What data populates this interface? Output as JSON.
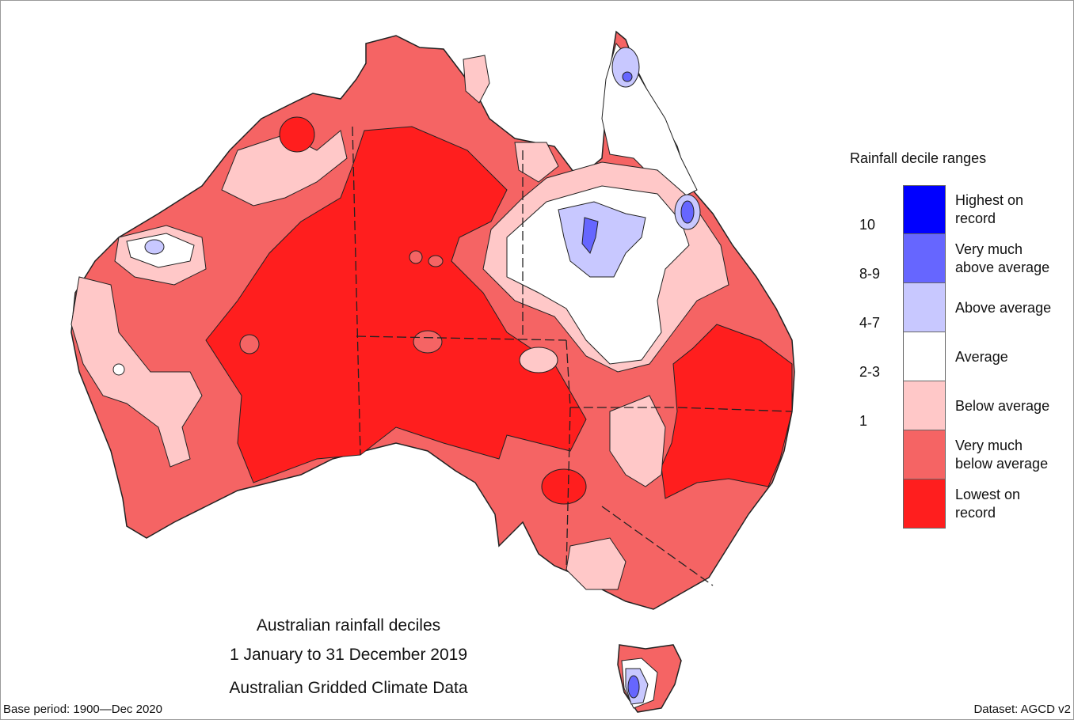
{
  "title": {
    "line1": "Australian rainfall deciles",
    "line2": "1 January to 31 December 2019",
    "line3": "Australian Gridded Climate Data"
  },
  "footer": {
    "base_period": "Base period: 1900—Dec 2020",
    "dataset": "Dataset: AGCD v2"
  },
  "legend": {
    "title": "Rainfall decile ranges",
    "items": [
      {
        "range": "",
        "label": "Highest on record",
        "color": "#0000ff"
      },
      {
        "range": "10",
        "label": "Very much above average",
        "color": "#6666ff"
      },
      {
        "range": "8-9",
        "label": "Above average",
        "color": "#c8c8ff"
      },
      {
        "range": "4-7",
        "label": "Average",
        "color": "#ffffff"
      },
      {
        "range": "2-3",
        "label": "Below average",
        "color": "#ffc8c8"
      },
      {
        "range": "1",
        "label": "Very much below average",
        "color": "#f56464"
      },
      {
        "range": "",
        "label": "Lowest on record",
        "color": "#ff1e1e"
      }
    ]
  }
}
